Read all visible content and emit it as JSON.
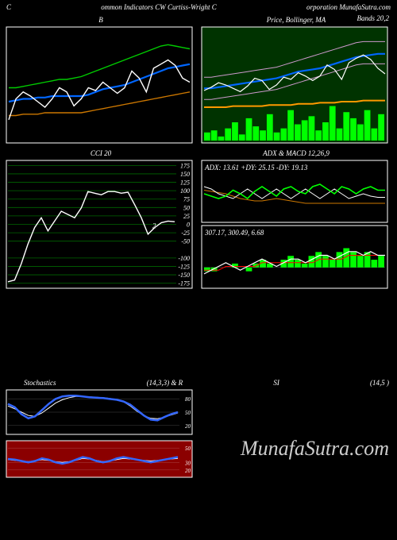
{
  "header": {
    "left": "C",
    "center": "ommon Indicators CW Curtiss-Wright C",
    "right": "orporation MunafaSutra.com"
  },
  "bollinger_title_right": "Bands 20,2",
  "panel_b": {
    "title": "B",
    "bg": "#000000",
    "border": "#ffffff",
    "series": {
      "white": {
        "color": "#ffffff",
        "width": 1.4,
        "points": [
          35,
          50,
          55,
          52,
          48,
          44,
          50,
          58,
          55,
          45,
          50,
          58,
          56,
          62,
          58,
          54,
          58,
          70,
          65,
          55,
          72,
          75,
          78,
          74,
          65,
          62
        ]
      },
      "blue": {
        "color": "#0066ff",
        "width": 2.2,
        "points": [
          48,
          49,
          50,
          50,
          51,
          51,
          52,
          52,
          52,
          52,
          52,
          53,
          55,
          57,
          58,
          59,
          60,
          62,
          64,
          66,
          68,
          70,
          72,
          73,
          74,
          75
        ]
      },
      "green": {
        "color": "#00cc00",
        "width": 1.4,
        "points": [
          58,
          58,
          59,
          60,
          61,
          62,
          63,
          64,
          64,
          65,
          66,
          68,
          70,
          72,
          74,
          76,
          78,
          80,
          82,
          84,
          86,
          88,
          89,
          88,
          87,
          86
        ]
      },
      "orange": {
        "color": "#cc7700",
        "width": 1.4,
        "points": [
          38,
          38,
          39,
          39,
          39,
          40,
          40,
          40,
          40,
          40,
          40,
          41,
          42,
          43,
          44,
          45,
          46,
          47,
          48,
          49,
          50,
          51,
          52,
          53,
          54,
          55
        ]
      }
    },
    "ymin": 20,
    "ymax": 100
  },
  "panel_price": {
    "title": "Price, Bollinger, MA",
    "bg": "#003300",
    "border": "#ffffff",
    "series": {
      "white": {
        "color": "#ffffff",
        "width": 1.2,
        "points": [
          45,
          48,
          52,
          50,
          47,
          44,
          49,
          56,
          54,
          46,
          50,
          57,
          55,
          61,
          58,
          54,
          58,
          68,
          64,
          55,
          70,
          74,
          77,
          73,
          65,
          60
        ]
      },
      "upper": {
        "color": "#cc99cc",
        "width": 1,
        "points": [
          57,
          57,
          58,
          59,
          60,
          61,
          62,
          63,
          64,
          65,
          66,
          68,
          70,
          72,
          74,
          76,
          78,
          80,
          82,
          84,
          86,
          88,
          89,
          89,
          89,
          89
        ]
      },
      "lower": {
        "color": "#cc99cc",
        "width": 1,
        "points": [
          37,
          37,
          38,
          39,
          40,
          41,
          42,
          43,
          44,
          45,
          46,
          48,
          50,
          52,
          54,
          56,
          58,
          60,
          62,
          64,
          66,
          68,
          69,
          69,
          69,
          69
        ]
      },
      "blue": {
        "color": "#0066ff",
        "width": 2.2,
        "points": [
          47,
          47,
          48,
          49,
          50,
          51,
          52,
          53,
          54,
          55,
          56,
          58,
          60,
          62,
          63,
          64,
          65,
          67,
          69,
          71,
          73,
          75,
          76,
          77,
          78,
          78
        ]
      },
      "orange": {
        "color": "#ff9900",
        "width": 2,
        "points": [
          30,
          30,
          30,
          30,
          31,
          31,
          31,
          31,
          31,
          32,
          32,
          32,
          32,
          33,
          33,
          33,
          34,
          34,
          34,
          35,
          35,
          35,
          36,
          36,
          36,
          36
        ]
      }
    },
    "volume": {
      "color": "#00ff00",
      "bars": [
        8,
        10,
        4,
        12,
        18,
        6,
        22,
        14,
        10,
        26,
        8,
        12,
        30,
        16,
        20,
        24,
        10,
        18,
        34,
        12,
        28,
        22,
        16,
        30,
        12,
        26
      ]
    },
    "ymin": 0,
    "ymax": 100
  },
  "panel_cci": {
    "title": "CCI 20",
    "bg": "#000000",
    "border": "#ffffff",
    "grid_color": "#006600",
    "grid_levels": [
      175,
      150,
      125,
      100,
      75,
      50,
      25,
      0,
      -25,
      -50,
      -100,
      -125,
      -150,
      -175
    ],
    "annotation": " 2",
    "series": {
      "white": {
        "color": "#ffffff",
        "width": 1.4,
        "points": [
          -175,
          -170,
          -120,
          -60,
          -10,
          20,
          -20,
          10,
          40,
          30,
          20,
          50,
          100,
          95,
          90,
          100,
          100,
          95,
          98,
          60,
          20,
          -30,
          -10,
          5,
          10,
          8
        ]
      }
    },
    "ymin": -190,
    "ymax": 190
  },
  "panel_adx": {
    "title": "ADX  & MACD 12,26,9",
    "bg": "#000000",
    "border": "#ffffff",
    "adx_label": "ADX: 13.61 +DY: 25.15 -DY: 19.13",
    "adx_series": {
      "green": {
        "color": "#00ff00",
        "width": 1.6,
        "points": [
          22,
          20,
          18,
          20,
          25,
          22,
          18,
          24,
          28,
          24,
          20,
          26,
          28,
          24,
          22,
          28,
          30,
          26,
          22,
          28,
          26,
          22,
          26,
          28,
          25,
          25
        ]
      },
      "white": {
        "color": "#ffffff",
        "width": 1,
        "points": [
          28,
          26,
          22,
          20,
          18,
          22,
          26,
          22,
          18,
          22,
          26,
          22,
          18,
          22,
          26,
          22,
          18,
          22,
          26,
          22,
          18,
          20,
          22,
          20,
          19,
          19
        ]
      },
      "orange": {
        "color": "#cc7700",
        "width": 1,
        "points": [
          25,
          24,
          23,
          22,
          20,
          18,
          17,
          16,
          16,
          17,
          18,
          17,
          16,
          15,
          14,
          14,
          14,
          14,
          14,
          14,
          14,
          14,
          14,
          14,
          14,
          14
        ]
      }
    },
    "adx_ymin": 0,
    "adx_ymax": 40,
    "macd_label": "307.17, 300.49, 6.68",
    "macd_hist": {
      "color": "#00ff00",
      "bars": [
        -1,
        -1,
        0,
        0,
        1,
        0,
        -1,
        1,
        2,
        1,
        0,
        2,
        3,
        2,
        1,
        3,
        4,
        3,
        2,
        4,
        5,
        4,
        3,
        4,
        2,
        3
      ]
    },
    "macd_series": {
      "white": {
        "color": "#ffffff",
        "width": 1.2,
        "points": [
          -2,
          -1,
          0,
          1,
          0,
          -1,
          0,
          1,
          2,
          1,
          0,
          1,
          2,
          2,
          1,
          2,
          3,
          3,
          2,
          3,
          4,
          4,
          3,
          4,
          3,
          3
        ]
      },
      "red": {
        "color": "#ff0000",
        "width": 1,
        "points": [
          -1,
          -1,
          -1,
          0,
          0,
          0,
          0,
          0,
          1,
          1,
          1,
          1,
          1,
          1,
          1,
          1,
          2,
          2,
          2,
          2,
          3,
          3,
          3,
          3,
          3,
          3
        ]
      }
    },
    "macd_ymin": -5,
    "macd_ymax": 8
  },
  "stoch_header": {
    "left": "Stochastics",
    "mid": "(14,3,3) & R",
    "mid2": "SI",
    "right": "(14,5                                 )"
  },
  "panel_stoch": {
    "bg": "#000000",
    "border": "#ffffff",
    "levels": [
      80,
      50,
      20
    ],
    "grid_color": "#444444",
    "series": {
      "blue": {
        "color": "#3366ff",
        "width": 2.5,
        "points": [
          70,
          62,
          45,
          35,
          40,
          55,
          70,
          82,
          88,
          90,
          90,
          88,
          86,
          85,
          84,
          82,
          80,
          76,
          68,
          55,
          42,
          32,
          30,
          38,
          45,
          50
        ]
      },
      "white": {
        "color": "#ffffff",
        "width": 1,
        "points": [
          65,
          58,
          50,
          42,
          40,
          48,
          60,
          72,
          80,
          85,
          88,
          88,
          87,
          86,
          85,
          83,
          80,
          75,
          65,
          52,
          42,
          35,
          34,
          38,
          43,
          48
        ]
      }
    },
    "ymin": 0,
    "ymax": 100,
    "label_r": "80,50,20"
  },
  "panel_rsi": {
    "bg": "#8b0000",
    "border": "#ffffff",
    "levels": [
      50,
      30,
      20
    ],
    "grid_color": "#aa4444",
    "series": {
      "blue": {
        "color": "#3366ff",
        "width": 2.5,
        "points": [
          35,
          34,
          32,
          30,
          32,
          36,
          34,
          30,
          28,
          30,
          34,
          38,
          36,
          32,
          30,
          32,
          36,
          38,
          36,
          34,
          32,
          30,
          32,
          34,
          36,
          38
        ]
      },
      "white": {
        "color": "#ffffff",
        "width": 1,
        "points": [
          34,
          33,
          32,
          31,
          32,
          34,
          33,
          31,
          30,
          31,
          33,
          36,
          35,
          33,
          31,
          32,
          34,
          36,
          35,
          34,
          33,
          32,
          33,
          34,
          35,
          36
        ]
      }
    },
    "ymin": 10,
    "ymax": 60,
    "label_r": "50,30,20"
  },
  "watermark": "MunafaSutra.com"
}
